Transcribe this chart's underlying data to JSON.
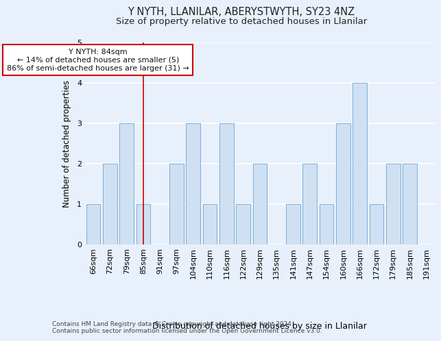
{
  "title_line1": "Y NYTH, LLANILAR, ABERYSTWYTH, SY23 4NZ",
  "title_line2": "Size of property relative to detached houses in Llanilar",
  "xlabel": "Distribution of detached houses by size in Llanilar",
  "ylabel": "Number of detached properties",
  "categories": [
    "66sqm",
    "72sqm",
    "79sqm",
    "85sqm",
    "91sqm",
    "97sqm",
    "104sqm",
    "110sqm",
    "116sqm",
    "122sqm",
    "129sqm",
    "135sqm",
    "141sqm",
    "147sqm",
    "154sqm",
    "160sqm",
    "166sqm",
    "172sqm",
    "179sqm",
    "185sqm",
    "191sqm"
  ],
  "values": [
    1,
    2,
    3,
    1,
    0,
    2,
    3,
    1,
    3,
    1,
    2,
    0,
    1,
    2,
    1,
    3,
    4,
    1,
    2,
    2,
    0
  ],
  "bar_color": "#cfe0f3",
  "bar_edge_color": "#7bafd4",
  "red_line_x": 3.0,
  "annotation_title": "Y NYTH: 84sqm",
  "annotation_line1": "← 14% of detached houses are smaller (5)",
  "annotation_line2": "86% of semi-detached houses are larger (31) →",
  "annotation_box_color": "#ffffff",
  "annotation_box_edge": "#cc0000",
  "ylim": [
    0,
    5
  ],
  "yticks": [
    0,
    1,
    2,
    3,
    4,
    5
  ],
  "footnote1": "Contains HM Land Registry data © Crown copyright and database right 2024.",
  "footnote2": "Contains public sector information licensed under the Open Government Licence v3.0.",
  "background_color": "#e8f0fb",
  "grid_color": "#ffffff",
  "title_fontsize": 10.5,
  "subtitle_fontsize": 9.5,
  "tick_fontsize": 8,
  "bar_width": 0.85
}
